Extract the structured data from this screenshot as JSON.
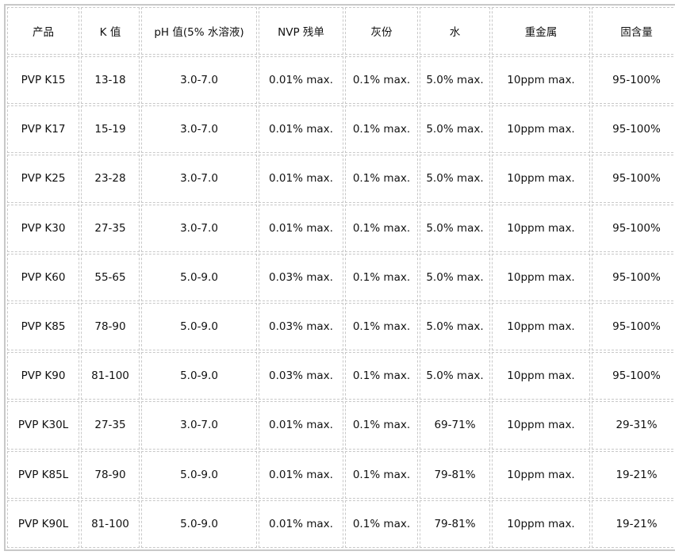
{
  "headers": [
    "产品",
    "K 值",
    "pH  值(5%  水溶液)",
    "NVP 残单",
    "灰份",
    "水",
    "重金属",
    "固含量"
  ],
  "rows": [
    [
      "PVP K15",
      "13-18",
      "3.0-7.0",
      "0.01% max.",
      "0.1% max.",
      "5.0% max.",
      "10ppm max.",
      "95-100%"
    ],
    [
      "PVP K17",
      "15-19",
      "3.0-7.0",
      "0.01% max.",
      "0.1% max.",
      "5.0% max.",
      "10ppm max.",
      "95-100%"
    ],
    [
      "PVP K25",
      "23-28",
      "3.0-7.0",
      "0.01% max.",
      "0.1% max.",
      "5.0% max.",
      "10ppm max.",
      "95-100%"
    ],
    [
      "PVP K30",
      "27-35",
      "3.0-7.0",
      "0.01% max.",
      "0.1% max.",
      "5.0% max.",
      "10ppm max.",
      "95-100%"
    ],
    [
      "PVP K60",
      "55-65",
      "5.0-9.0",
      "0.03% max.",
      "0.1% max.",
      "5.0% max.",
      "10ppm max.",
      "95-100%"
    ],
    [
      "PVP K85",
      "78-90",
      "5.0-9.0",
      "0.03% max.",
      "0.1% max.",
      "5.0% max.",
      "10ppm max.",
      "95-100%"
    ],
    [
      "PVP K90",
      "81-100",
      "5.0-9.0",
      "0.03% max.",
      "0.1% max.",
      "5.0% max.",
      "10ppm max.",
      "95-100%"
    ],
    [
      "PVP K30L",
      "27-35",
      "3.0-7.0",
      "0.01% max.",
      "0.1% max.",
      "69-71%",
      "10ppm max.",
      "29-31%"
    ],
    [
      "PVP K85L",
      "78-90",
      "5.0-9.0",
      "0.01% max.",
      "0.1% max.",
      "79-81%",
      "10ppm max.",
      "19-21%"
    ],
    [
      "PVP K90L",
      "81-100",
      "5.0-9.0",
      "0.01% max.",
      "0.1% max.",
      "79-81%",
      "10ppm max.",
      "19-21%"
    ]
  ]
}
